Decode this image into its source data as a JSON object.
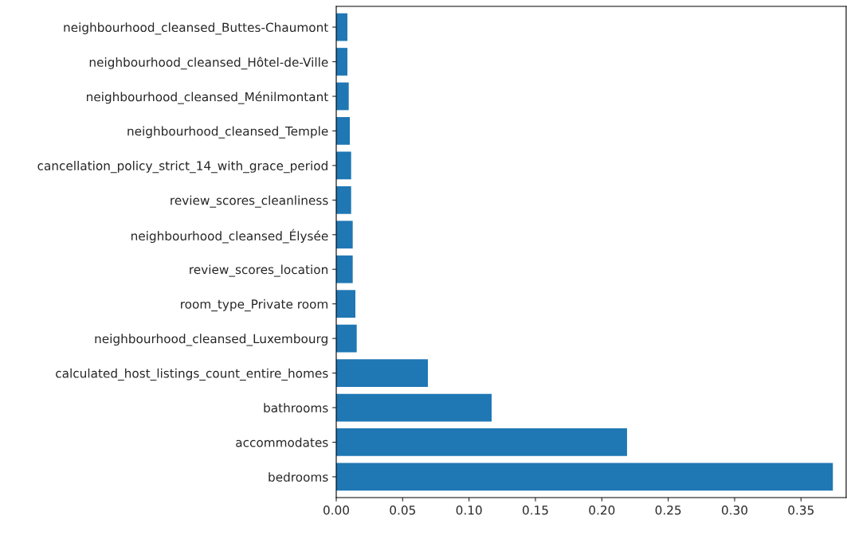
{
  "chart_data": {
    "type": "bar",
    "orientation": "horizontal",
    "categories": [
      "neighbourhood_cleansed_Buttes-Chaumont",
      "neighbourhood_cleansed_Hôtel-de-Ville",
      "neighbourhood_cleansed_Ménilmontant",
      "neighbourhood_cleansed_Temple",
      "cancellation_policy_strict_14_with_grace_period",
      "review_scores_cleanliness",
      "neighbourhood_cleansed_Élysée",
      "review_scores_location",
      "room_type_Private room",
      "neighbourhood_cleansed_Luxembourg",
      "calculated_host_listings_count_entire_homes",
      "bathrooms",
      "accommodates",
      "bedrooms"
    ],
    "values": [
      0.0084,
      0.0084,
      0.0094,
      0.0102,
      0.0112,
      0.0112,
      0.0124,
      0.0124,
      0.0144,
      0.0154,
      0.069,
      0.117,
      0.219,
      0.374
    ],
    "color": "#1f77b4",
    "xlim": [
      0,
      0.384
    ],
    "xticks": [
      {
        "value": 0,
        "label": "0.00"
      },
      {
        "value": 0.05,
        "label": "0.05"
      },
      {
        "value": 0.1,
        "label": "0.10"
      },
      {
        "value": 0.15,
        "label": "0.15"
      },
      {
        "value": 0.2,
        "label": "0.20"
      },
      {
        "value": 0.25,
        "label": "0.25"
      },
      {
        "value": 0.3,
        "label": "0.30"
      },
      {
        "value": 0.35,
        "label": "0.35"
      }
    ],
    "grid": false,
    "legend": false
  }
}
